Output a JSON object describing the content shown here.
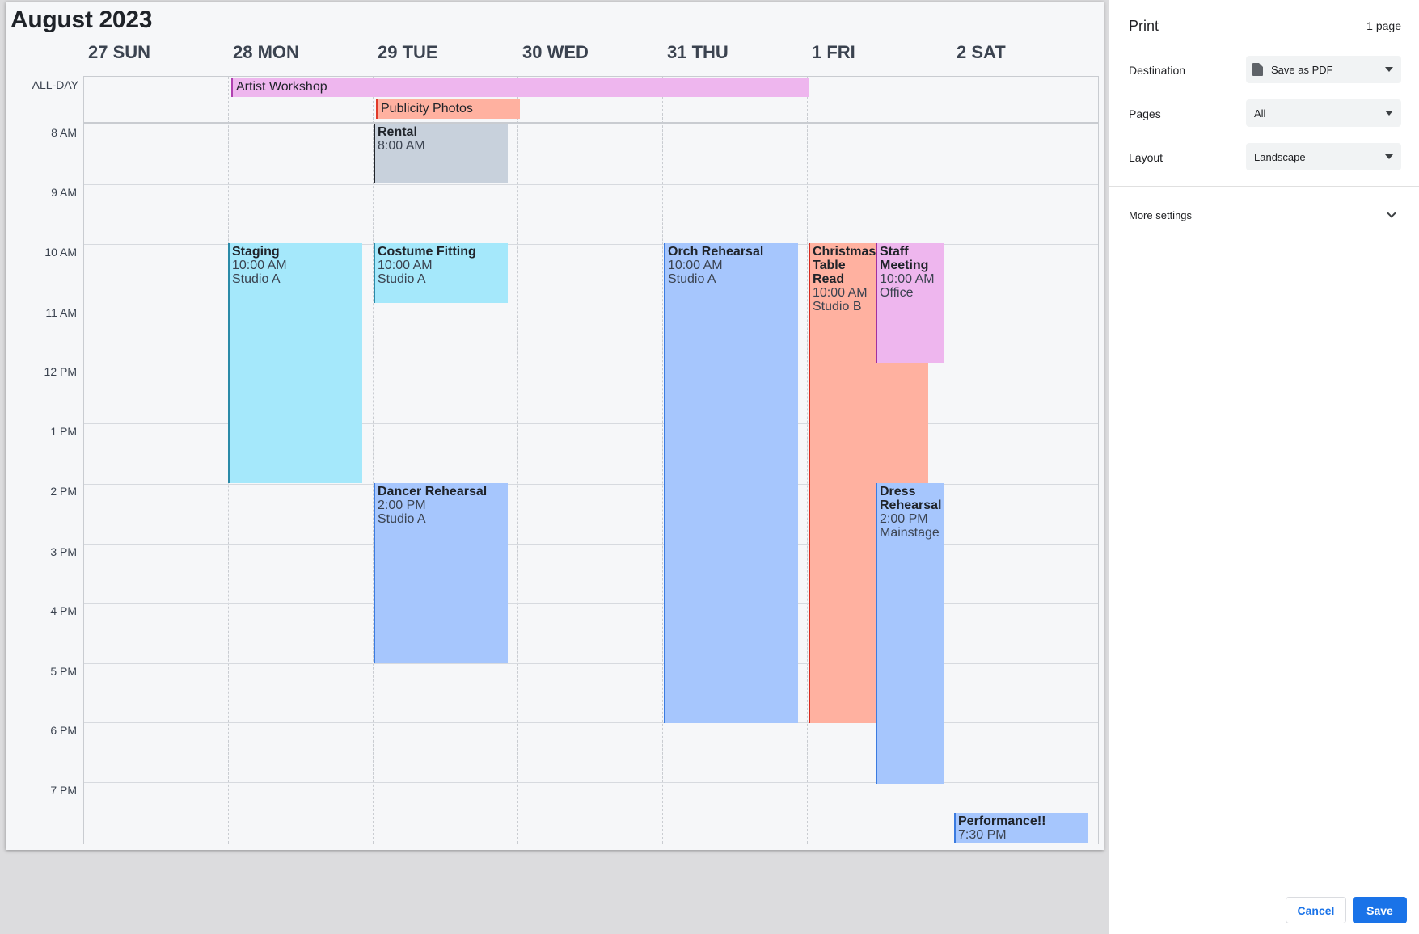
{
  "calendar": {
    "title": "August 2023",
    "days": [
      "27 SUN",
      "28 MON",
      "29 TUE",
      "30 WED",
      "31 THU",
      "1 FRI",
      "2 SAT"
    ],
    "allday_label": "ALL-DAY",
    "times": [
      "8 AM",
      "9 AM",
      "10 AM",
      "11 AM",
      "12 PM",
      "1 PM",
      "2 PM",
      "3 PM",
      "4 PM",
      "5 PM",
      "6 PM",
      "7 PM"
    ],
    "allday_events": {
      "artist_workshop": "Artist Workshop",
      "publicity_photos": "Publicity Photos"
    },
    "events": {
      "rental": {
        "title": "Rental",
        "time": "8:00 AM"
      },
      "staging": {
        "title": "Staging",
        "time": "10:00 AM",
        "location": "Studio A"
      },
      "costume_fitting": {
        "title": "Costume Fitting",
        "time": "10:00 AM",
        "location": "Studio A"
      },
      "orch_rehearsal": {
        "title": "Orch Rehearsal",
        "time": "10:00 AM",
        "location": "Studio A"
      },
      "christmas_table_read": {
        "title": "Christmas Table Read",
        "time": "10:00 AM",
        "location": "Studio B"
      },
      "staff_meeting": {
        "title": "Staff Meeting",
        "time": "10:00 AM",
        "location": "Office"
      },
      "dancer_rehearsal": {
        "title": "Dancer Rehearsal",
        "time": "2:00 PM",
        "location": "Studio A"
      },
      "dress_rehearsal": {
        "title": "Dress Rehearsal",
        "time": "2:00 PM",
        "location": "Mainstage"
      },
      "performance": {
        "title": "Performance!!",
        "time": "7:30 PM"
      }
    },
    "colors": {
      "pink": "#eeb6ee",
      "salmon": "#ffb1a0",
      "gray": "#c8d1dc",
      "cyan": "#a5e8fb",
      "blue": "#a6c6fd"
    }
  },
  "print": {
    "title": "Print",
    "page_count": "1 page",
    "destination_label": "Destination",
    "destination_value": "Save as PDF",
    "pages_label": "Pages",
    "pages_value": "All",
    "layout_label": "Layout",
    "layout_value": "Landscape",
    "more_settings": "More settings",
    "cancel": "Cancel",
    "save": "Save"
  }
}
